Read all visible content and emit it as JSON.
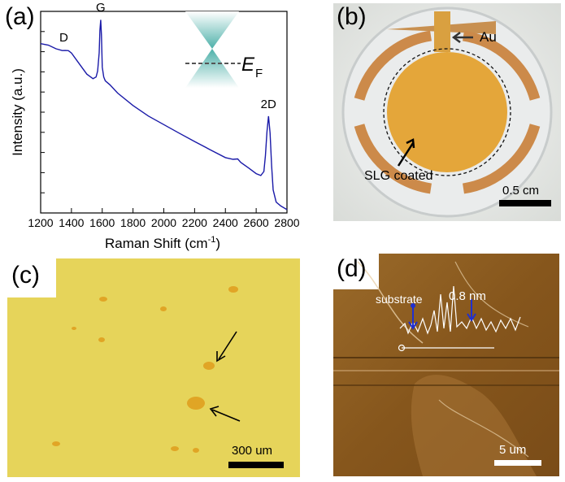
{
  "panels": {
    "a": {
      "label": "(a)"
    },
    "b": {
      "label": "(b)",
      "au_label": "Au",
      "slg_label": "SLG coated",
      "scalebar": "0.5 cm"
    },
    "c": {
      "label": "(c)",
      "scalebar": "300 um"
    },
    "d": {
      "label": "(d)",
      "substrate_label": "substrate",
      "height_label": "0.8 nm",
      "scalebar": "5 um"
    }
  },
  "inset": {
    "fermi_symbol": "E",
    "fermi_sub": "F"
  },
  "colors": {
    "spectrum": "#1a1aa8",
    "film_yellow": "#e6d45a",
    "afm_brown": "#8a5a20",
    "arrow_blue": "#2030d0"
  },
  "chart_data": {
    "type": "line",
    "title": "",
    "xlabel": "Raman Shift (cm",
    "xlabel_sup": "-1",
    "xlabel_close": ")",
    "ylabel": "Intensity (a.u.)",
    "xlim": [
      1200,
      2800
    ],
    "ylim": [
      0,
      1
    ],
    "x_ticks": [
      1200,
      1400,
      1600,
      1800,
      2000,
      2200,
      2400,
      2600,
      2800
    ],
    "y_ticklabels": false,
    "peaks": [
      {
        "label": "D",
        "x": 1350
      },
      {
        "label": "G",
        "x": 1590
      },
      {
        "label": "2D",
        "x": 2680
      }
    ],
    "series": [
      {
        "x": [
          1200,
          1250,
          1300,
          1340,
          1360,
          1380,
          1400,
          1450,
          1500,
          1540,
          1560,
          1570,
          1580,
          1585,
          1590,
          1595,
          1600,
          1610,
          1620,
          1650,
          1700,
          1800,
          1900,
          2000,
          2100,
          2200,
          2300,
          2400,
          2450,
          2480,
          2500,
          2550,
          2600,
          2630,
          2650,
          2660,
          2670,
          2680,
          2690,
          2700,
          2710,
          2730,
          2760,
          2800
        ],
        "values": [
          0.84,
          0.83,
          0.81,
          0.8,
          0.8,
          0.8,
          0.79,
          0.74,
          0.69,
          0.67,
          0.68,
          0.71,
          0.8,
          0.91,
          0.96,
          0.88,
          0.72,
          0.67,
          0.65,
          0.63,
          0.59,
          0.53,
          0.48,
          0.44,
          0.4,
          0.36,
          0.32,
          0.28,
          0.27,
          0.27,
          0.25,
          0.22,
          0.19,
          0.18,
          0.2,
          0.28,
          0.4,
          0.48,
          0.4,
          0.24,
          0.12,
          0.06,
          0.04,
          0.02
        ]
      }
    ]
  }
}
